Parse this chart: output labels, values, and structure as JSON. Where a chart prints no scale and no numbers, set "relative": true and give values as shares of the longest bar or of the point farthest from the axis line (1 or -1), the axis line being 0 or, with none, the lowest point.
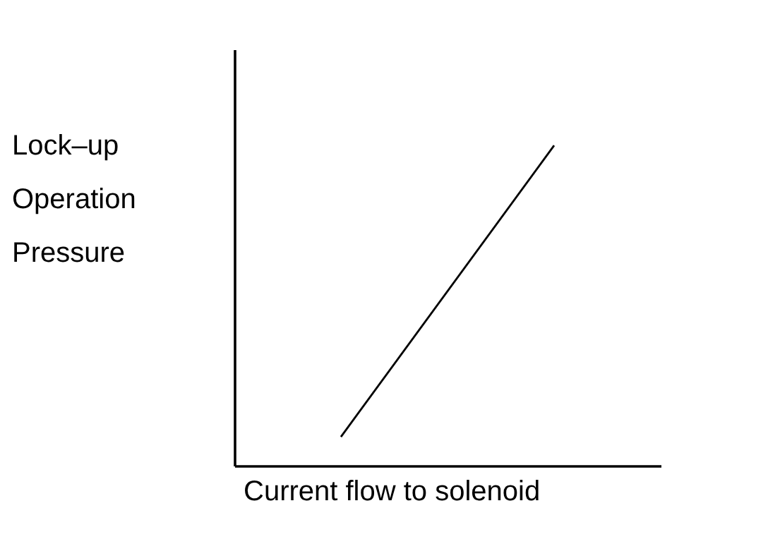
{
  "chart_data": {
    "type": "line",
    "relative": true,
    "xlabel": "Current flow to solenoid",
    "ylabel": "Lock–up Operation Pressure",
    "categories": [
      null,
      null
    ],
    "series": [
      {
        "color": "#000000",
        "values": [
          0.09,
          1.0
        ]
      }
    ],
    "marker": "none",
    "line_style": "solid",
    "grid": false
  }
}
